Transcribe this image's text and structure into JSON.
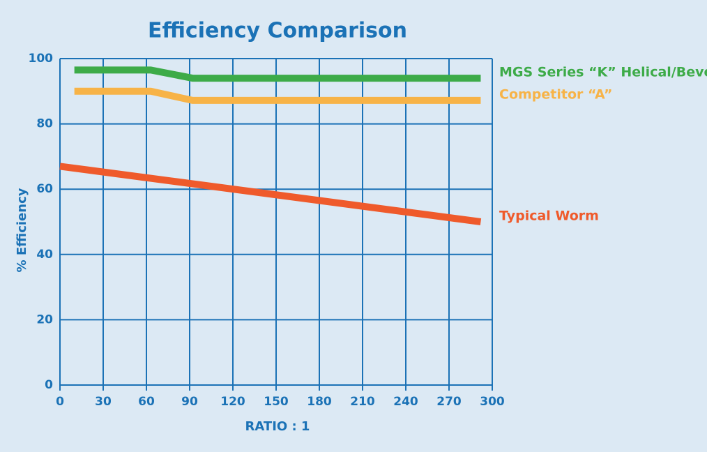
{
  "chart_data": {
    "type": "line",
    "title": "Efficiency Comparison",
    "x_label": "RATIO : 1",
    "y_label": "% Efficiency",
    "series": [
      {
        "name": "MGS Series “K” Helical/Bevel",
        "color": "#3dab48",
        "x": [
          10,
          63,
          92,
          292
        ],
        "values": [
          96.5,
          96.5,
          94,
          94
        ]
      },
      {
        "name": "Competitor “A”",
        "color": "#f7b347",
        "x": [
          10,
          63,
          92,
          292
        ],
        "values": [
          90,
          90,
          87.2,
          87.2
        ]
      },
      {
        "name": "Typical Worm",
        "color": "#ef5a2b",
        "x": [
          0,
          292
        ],
        "values": [
          67,
          50
        ]
      }
    ],
    "xlim": [
      0,
      300
    ],
    "xticks": [
      0,
      30,
      60,
      90,
      120,
      150,
      180,
      210,
      240,
      270,
      300
    ],
    "ylim": [
      0,
      100
    ],
    "yticks": [
      0,
      20,
      40,
      60,
      80,
      100
    ],
    "grid": true
  }
}
